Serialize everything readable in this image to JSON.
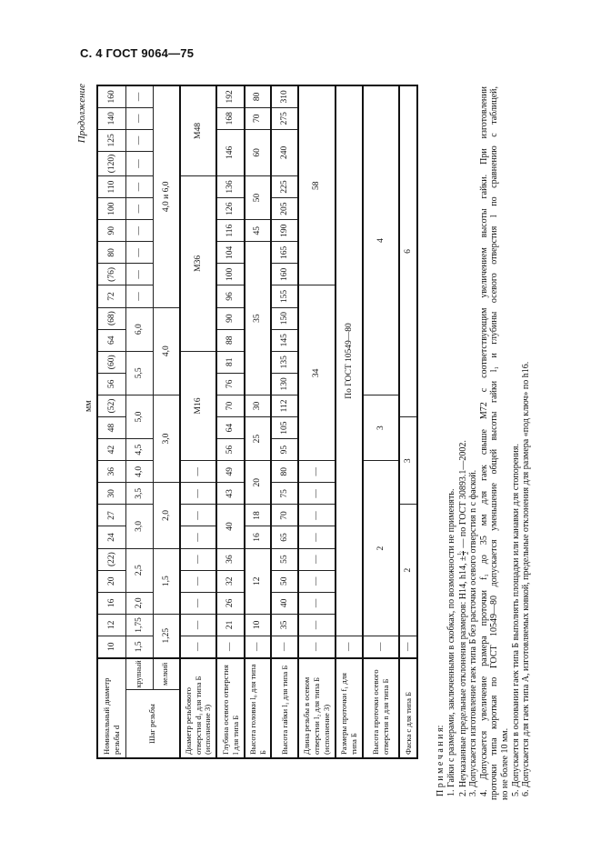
{
  "page_header": "С. 4 ГОСТ 9064—75",
  "continuation": "Продолжение",
  "unit": "мм",
  "table": {
    "labels": {
      "d": "Номинальный диаметр резьбы d",
      "pitch": "Шаг резьбы",
      "coarse": "круп­ный",
      "fine": "мел­кий",
      "d1": "Диаметр резьбового отверстия d₁ для типа Б (исполнение 3)",
      "l": "Глубина осевого отверстия l для типа Б",
      "l0": "Высота головки l₀ для типа Б",
      "l1": "Высота гайки l₁ для типа Б",
      "l2": "Длина резьбы в осевом отверстии l₂ для типа Б (исполнение 3)",
      "f1": "Размеры проточки f₁ для типа Б",
      "n": "Высота проточки осевого отверстия n для типа Б",
      "c": "Фаска c для типа Б"
    },
    "diameters": [
      "10",
      "12",
      "16",
      "20",
      "(22)",
      "24",
      "27",
      "30",
      "36",
      "42",
      "48",
      "(52)",
      "56",
      "(60)",
      "64",
      "(68)",
      "72",
      "(76)",
      "80",
      "90",
      "100",
      "110",
      "(120)",
      "125",
      "140",
      "160"
    ],
    "rows": {
      "coarse": [
        [
          "1,5",
          1
        ],
        [
          "1,75",
          1
        ],
        [
          "2,0",
          1
        ],
        [
          "2,5",
          2
        ],
        [
          "3,0",
          2
        ],
        [
          "3,5",
          1
        ],
        [
          "4,0",
          1
        ],
        [
          "4,5",
          1
        ],
        [
          "5,0",
          2
        ],
        [
          "5,5",
          2
        ],
        [
          "6,0",
          2
        ],
        [
          "—",
          1
        ],
        [
          "—",
          1
        ],
        [
          "—",
          1
        ],
        [
          "—",
          1
        ],
        [
          "—",
          1
        ],
        [
          "—",
          1
        ],
        [
          "—",
          1
        ],
        [
          "—",
          1
        ],
        [
          "—",
          1
        ],
        [
          "—",
          1
        ]
      ],
      "fine": [
        [
          "1,25",
          2
        ],
        [
          "1,5",
          3
        ],
        [
          "2,0",
          3
        ],
        [
          "3,0",
          4
        ],
        [
          "4,0",
          4
        ],
        [
          "4,0 и 6,0",
          10
        ]
      ],
      "d1": [
        [
          "—",
          1
        ],
        [
          "—",
          1
        ],
        [
          "—",
          1
        ],
        [
          "—",
          1
        ],
        [
          "—",
          1
        ],
        [
          "—",
          1
        ],
        [
          "—",
          1
        ],
        [
          "—",
          1
        ],
        [
          "—",
          1
        ],
        [
          "М16",
          5
        ],
        [
          "М36",
          8
        ],
        [
          "М48",
          4
        ]
      ],
      "l": [
        [
          "—",
          1
        ],
        [
          "21",
          1
        ],
        [
          "26",
          1
        ],
        [
          "32",
          1
        ],
        [
          "36",
          1
        ],
        [
          "40",
          2
        ],
        [
          "43",
          1
        ],
        [
          "49",
          1
        ],
        [
          "56",
          1
        ],
        [
          "64",
          1
        ],
        [
          "70",
          1
        ],
        [
          "76",
          1
        ],
        [
          "81",
          1
        ],
        [
          "88",
          1
        ],
        [
          "90",
          1
        ],
        [
          "96",
          1
        ],
        [
          "100",
          1
        ],
        [
          "104",
          1
        ],
        [
          "116",
          1
        ],
        [
          "126",
          1
        ],
        [
          "136",
          1
        ],
        [
          "146",
          2
        ],
        [
          "168",
          1
        ],
        [
          "192",
          1
        ]
      ],
      "l0": [
        [
          "—",
          1
        ],
        [
          "10",
          1
        ],
        [
          "12",
          3
        ],
        [
          "16",
          1
        ],
        [
          "18",
          1
        ],
        [
          "20",
          2
        ],
        [
          "25",
          2
        ],
        [
          "30",
          1
        ],
        [
          "35",
          7
        ],
        [
          "45",
          1
        ],
        [
          "50",
          2
        ],
        [
          "60",
          2
        ],
        [
          "70",
          1
        ],
        [
          "80",
          1
        ]
      ],
      "l1": [
        [
          "—",
          1
        ],
        [
          "35",
          1
        ],
        [
          "40",
          1
        ],
        [
          "50",
          1
        ],
        [
          "55",
          1
        ],
        [
          "65",
          1
        ],
        [
          "70",
          1
        ],
        [
          "75",
          1
        ],
        [
          "80",
          1
        ],
        [
          "95",
          1
        ],
        [
          "105",
          1
        ],
        [
          "112",
          1
        ],
        [
          "130",
          1
        ],
        [
          "135",
          1
        ],
        [
          "145",
          1
        ],
        [
          "150",
          1
        ],
        [
          "155",
          1
        ],
        [
          "160",
          1
        ],
        [
          "165",
          1
        ],
        [
          "190",
          1
        ],
        [
          "205",
          1
        ],
        [
          "225",
          1
        ],
        [
          "240",
          2
        ],
        [
          "275",
          1
        ],
        [
          "310",
          1
        ]
      ],
      "l2": [
        [
          "—",
          1
        ],
        [
          "—",
          1
        ],
        [
          "—",
          1
        ],
        [
          "—",
          1
        ],
        [
          "—",
          1
        ],
        [
          "—",
          1
        ],
        [
          "—",
          1
        ],
        [
          "—",
          1
        ],
        [
          "—",
          1
        ],
        [
          "34",
          8
        ],
        [
          "58",
          9
        ]
      ],
      "f1": [
        [
          "—",
          1
        ],
        [
          "По ГОСТ 10549—80",
          25
        ]
      ],
      "n": [
        [
          "—",
          1
        ],
        [
          "2",
          8
        ],
        [
          "3",
          3
        ],
        [
          "4",
          14
        ]
      ],
      "c": [
        [
          "—",
          1
        ],
        [
          "2",
          6
        ],
        [
          "3",
          4
        ],
        [
          "6",
          15
        ]
      ]
    }
  },
  "notes": {
    "title": "П р и м е ч а н и я:",
    "n1": "1. Гайки с размерами, заключенными в скобках, по возможности не применять.",
    "n2_before": "2. Неуказанные предельные отклонения размеров: H14, h14, ±",
    "n2_num": "t₂",
    "n2_den": "2",
    "n2_after": " — по ГОСТ 30893.1—2002.",
    "n3": "3. Допускается изготовление гаек типа Б без расточки осевого отверстия n с фаской.",
    "n4_a": "4. Допускается увеличение размера проточки f₁ до 35 мм для гаек свыше М72 с соответствующим увеличением высоты гайки. При изготовлении",
    "n4_b": "проточки типа короткая по ГОСТ 10549—80 допускается уменьшение общей высоты гайки l₁ и глубины осевого отверстия l по сравнению с таблицей,",
    "n4_c": "но не более 10 мм.",
    "n5": "5. Допускается в основании гаек типа Б выполнять площадки или канавки для стопорения.",
    "n6": "6. Допускается для гаек типа А, изготовляемых ковкой, предельные отклонения для размера «под ключ» по h16."
  }
}
